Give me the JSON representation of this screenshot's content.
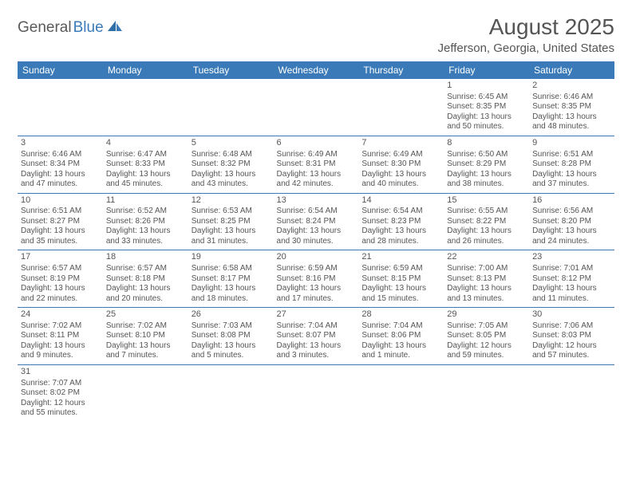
{
  "logo": {
    "text_dark": "General",
    "text_blue": "Blue"
  },
  "title": "August 2025",
  "location": "Jefferson, Georgia, United States",
  "colors": {
    "header_bg": "#3a7ab8",
    "header_text": "#ffffff",
    "border": "#3a7ab8",
    "text": "#555555",
    "page_bg": "#ffffff"
  },
  "weekdays": [
    "Sunday",
    "Monday",
    "Tuesday",
    "Wednesday",
    "Thursday",
    "Friday",
    "Saturday"
  ],
  "weeks": [
    [
      null,
      null,
      null,
      null,
      null,
      {
        "d": "1",
        "sr": "Sunrise: 6:45 AM",
        "ss": "Sunset: 8:35 PM",
        "dl": "Daylight: 13 hours and 50 minutes."
      },
      {
        "d": "2",
        "sr": "Sunrise: 6:46 AM",
        "ss": "Sunset: 8:35 PM",
        "dl": "Daylight: 13 hours and 48 minutes."
      }
    ],
    [
      {
        "d": "3",
        "sr": "Sunrise: 6:46 AM",
        "ss": "Sunset: 8:34 PM",
        "dl": "Daylight: 13 hours and 47 minutes."
      },
      {
        "d": "4",
        "sr": "Sunrise: 6:47 AM",
        "ss": "Sunset: 8:33 PM",
        "dl": "Daylight: 13 hours and 45 minutes."
      },
      {
        "d": "5",
        "sr": "Sunrise: 6:48 AM",
        "ss": "Sunset: 8:32 PM",
        "dl": "Daylight: 13 hours and 43 minutes."
      },
      {
        "d": "6",
        "sr": "Sunrise: 6:49 AM",
        "ss": "Sunset: 8:31 PM",
        "dl": "Daylight: 13 hours and 42 minutes."
      },
      {
        "d": "7",
        "sr": "Sunrise: 6:49 AM",
        "ss": "Sunset: 8:30 PM",
        "dl": "Daylight: 13 hours and 40 minutes."
      },
      {
        "d": "8",
        "sr": "Sunrise: 6:50 AM",
        "ss": "Sunset: 8:29 PM",
        "dl": "Daylight: 13 hours and 38 minutes."
      },
      {
        "d": "9",
        "sr": "Sunrise: 6:51 AM",
        "ss": "Sunset: 8:28 PM",
        "dl": "Daylight: 13 hours and 37 minutes."
      }
    ],
    [
      {
        "d": "10",
        "sr": "Sunrise: 6:51 AM",
        "ss": "Sunset: 8:27 PM",
        "dl": "Daylight: 13 hours and 35 minutes."
      },
      {
        "d": "11",
        "sr": "Sunrise: 6:52 AM",
        "ss": "Sunset: 8:26 PM",
        "dl": "Daylight: 13 hours and 33 minutes."
      },
      {
        "d": "12",
        "sr": "Sunrise: 6:53 AM",
        "ss": "Sunset: 8:25 PM",
        "dl": "Daylight: 13 hours and 31 minutes."
      },
      {
        "d": "13",
        "sr": "Sunrise: 6:54 AM",
        "ss": "Sunset: 8:24 PM",
        "dl": "Daylight: 13 hours and 30 minutes."
      },
      {
        "d": "14",
        "sr": "Sunrise: 6:54 AM",
        "ss": "Sunset: 8:23 PM",
        "dl": "Daylight: 13 hours and 28 minutes."
      },
      {
        "d": "15",
        "sr": "Sunrise: 6:55 AM",
        "ss": "Sunset: 8:22 PM",
        "dl": "Daylight: 13 hours and 26 minutes."
      },
      {
        "d": "16",
        "sr": "Sunrise: 6:56 AM",
        "ss": "Sunset: 8:20 PM",
        "dl": "Daylight: 13 hours and 24 minutes."
      }
    ],
    [
      {
        "d": "17",
        "sr": "Sunrise: 6:57 AM",
        "ss": "Sunset: 8:19 PM",
        "dl": "Daylight: 13 hours and 22 minutes."
      },
      {
        "d": "18",
        "sr": "Sunrise: 6:57 AM",
        "ss": "Sunset: 8:18 PM",
        "dl": "Daylight: 13 hours and 20 minutes."
      },
      {
        "d": "19",
        "sr": "Sunrise: 6:58 AM",
        "ss": "Sunset: 8:17 PM",
        "dl": "Daylight: 13 hours and 18 minutes."
      },
      {
        "d": "20",
        "sr": "Sunrise: 6:59 AM",
        "ss": "Sunset: 8:16 PM",
        "dl": "Daylight: 13 hours and 17 minutes."
      },
      {
        "d": "21",
        "sr": "Sunrise: 6:59 AM",
        "ss": "Sunset: 8:15 PM",
        "dl": "Daylight: 13 hours and 15 minutes."
      },
      {
        "d": "22",
        "sr": "Sunrise: 7:00 AM",
        "ss": "Sunset: 8:13 PM",
        "dl": "Daylight: 13 hours and 13 minutes."
      },
      {
        "d": "23",
        "sr": "Sunrise: 7:01 AM",
        "ss": "Sunset: 8:12 PM",
        "dl": "Daylight: 13 hours and 11 minutes."
      }
    ],
    [
      {
        "d": "24",
        "sr": "Sunrise: 7:02 AM",
        "ss": "Sunset: 8:11 PM",
        "dl": "Daylight: 13 hours and 9 minutes."
      },
      {
        "d": "25",
        "sr": "Sunrise: 7:02 AM",
        "ss": "Sunset: 8:10 PM",
        "dl": "Daylight: 13 hours and 7 minutes."
      },
      {
        "d": "26",
        "sr": "Sunrise: 7:03 AM",
        "ss": "Sunset: 8:08 PM",
        "dl": "Daylight: 13 hours and 5 minutes."
      },
      {
        "d": "27",
        "sr": "Sunrise: 7:04 AM",
        "ss": "Sunset: 8:07 PM",
        "dl": "Daylight: 13 hours and 3 minutes."
      },
      {
        "d": "28",
        "sr": "Sunrise: 7:04 AM",
        "ss": "Sunset: 8:06 PM",
        "dl": "Daylight: 13 hours and 1 minute."
      },
      {
        "d": "29",
        "sr": "Sunrise: 7:05 AM",
        "ss": "Sunset: 8:05 PM",
        "dl": "Daylight: 12 hours and 59 minutes."
      },
      {
        "d": "30",
        "sr": "Sunrise: 7:06 AM",
        "ss": "Sunset: 8:03 PM",
        "dl": "Daylight: 12 hours and 57 minutes."
      }
    ],
    [
      {
        "d": "31",
        "sr": "Sunrise: 7:07 AM",
        "ss": "Sunset: 8:02 PM",
        "dl": "Daylight: 12 hours and 55 minutes."
      },
      null,
      null,
      null,
      null,
      null,
      null
    ]
  ]
}
